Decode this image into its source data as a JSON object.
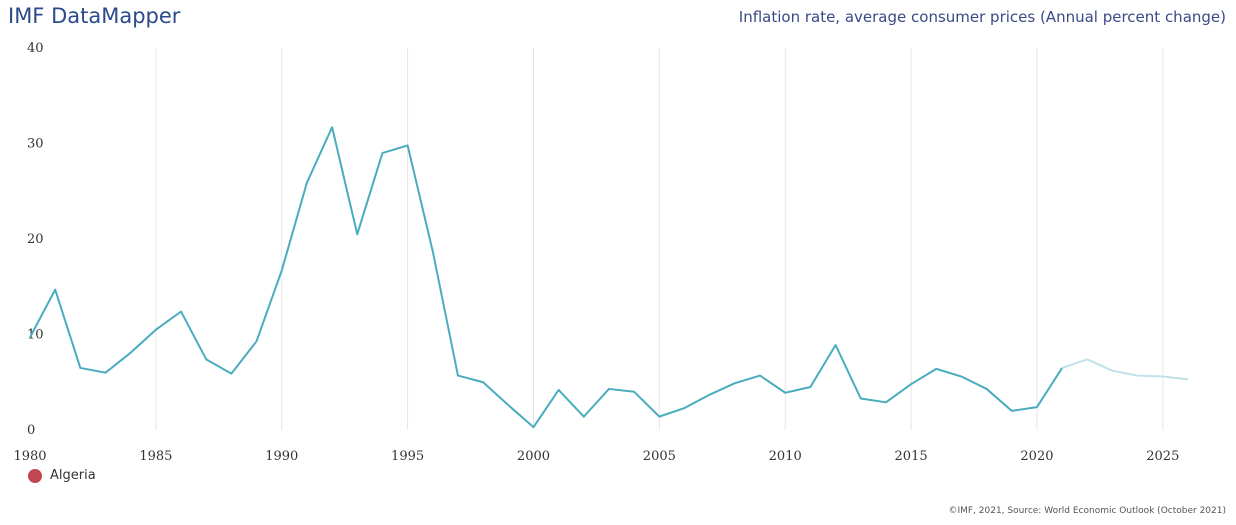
{
  "header": {
    "brand": "IMF DataMapper",
    "title": "Inflation rate, average consumer prices (Annual percent change)"
  },
  "legend": {
    "label": "Algeria",
    "color": "#c0474f"
  },
  "footer": {
    "source": "©IMF, 2021, Source: World Economic Outlook (October 2021)"
  },
  "colors": {
    "line": "#4aacbf",
    "projection": "#bfe1ea",
    "grid": "#e6e6e6"
  },
  "chart_data": {
    "type": "line",
    "title": "Inflation rate, average consumer prices (Annual percent change)",
    "xlim": [
      1980,
      2026
    ],
    "ylim": [
      0,
      40
    ],
    "xticks": [
      1980,
      1985,
      1990,
      1995,
      2000,
      2005,
      2010,
      2015,
      2020,
      2025
    ],
    "yticks": [
      0,
      10,
      20,
      30,
      40
    ],
    "grid": {
      "vertical": true,
      "horizontal": false
    },
    "legend_position": "bottom-left",
    "series": [
      {
        "name": "Algeria",
        "x": [
          1980,
          1981,
          1982,
          1983,
          1984,
          1985,
          1986,
          1987,
          1988,
          1989,
          1990,
          1991,
          1992,
          1993,
          1994,
          1995,
          1996,
          1997,
          1998,
          1999,
          2000,
          2001,
          2002,
          2003,
          2004,
          2005,
          2006,
          2007,
          2008,
          2009,
          2010,
          2011,
          2012,
          2013,
          2014,
          2015,
          2016,
          2017,
          2018,
          2019,
          2020,
          2021
        ],
        "values": [
          9.7,
          14.7,
          6.5,
          6.0,
          8.1,
          10.5,
          12.4,
          7.4,
          5.9,
          9.3,
          16.7,
          25.9,
          31.7,
          20.5,
          29.0,
          29.8,
          18.7,
          5.7,
          5.0,
          2.6,
          0.3,
          4.2,
          1.4,
          4.3,
          4.0,
          1.4,
          2.3,
          3.7,
          4.9,
          5.7,
          3.9,
          4.5,
          8.9,
          3.3,
          2.9,
          4.8,
          6.4,
          5.6,
          4.3,
          2.0,
          2.4,
          6.5
        ]
      },
      {
        "name": "",
        "projection": true,
        "x": [
          2021,
          2022,
          2023,
          2024,
          2025,
          2026
        ],
        "values": [
          6.5,
          7.4,
          6.2,
          5.7,
          5.6,
          5.3
        ]
      }
    ]
  }
}
